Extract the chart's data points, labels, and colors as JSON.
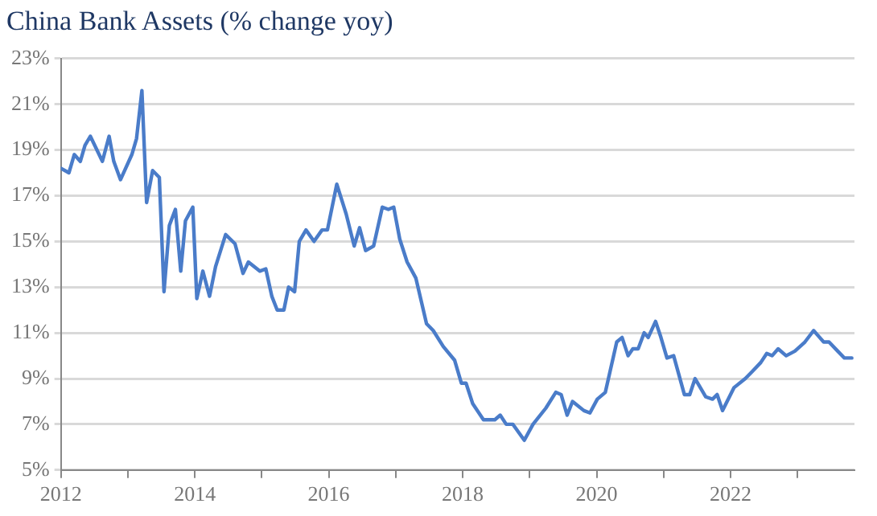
{
  "chart_data": {
    "type": "line",
    "title": "China Bank Assets (% change yoy)",
    "x": [
      2012.0,
      2012.12,
      2012.2,
      2012.29,
      2012.36,
      2012.44,
      2012.62,
      2012.72,
      2012.79,
      2012.89,
      2013.06,
      2013.13,
      2013.21,
      2013.28,
      2013.37,
      2013.47,
      2013.54,
      2013.62,
      2013.71,
      2013.79,
      2013.86,
      2013.97,
      2014.03,
      2014.12,
      2014.22,
      2014.31,
      2014.46,
      2014.6,
      2014.72,
      2014.8,
      2014.97,
      2015.06,
      2015.15,
      2015.23,
      2015.33,
      2015.4,
      2015.49,
      2015.56,
      2015.66,
      2015.78,
      2015.9,
      2015.98,
      2016.12,
      2016.26,
      2016.38,
      2016.46,
      2016.55,
      2016.67,
      2016.8,
      2016.89,
      2016.97,
      2017.06,
      2017.17,
      2017.3,
      2017.46,
      2017.56,
      2017.71,
      2017.88,
      2017.98,
      2018.05,
      2018.15,
      2018.31,
      2018.48,
      2018.56,
      2018.65,
      2018.75,
      2018.92,
      2019.05,
      2019.24,
      2019.39,
      2019.47,
      2019.56,
      2019.64,
      2019.81,
      2019.9,
      2020.01,
      2020.13,
      2020.3,
      2020.38,
      2020.47,
      2020.54,
      2020.62,
      2020.71,
      2020.77,
      2020.88,
      2020.96,
      2021.05,
      2021.15,
      2021.31,
      2021.39,
      2021.47,
      2021.63,
      2021.73,
      2021.8,
      2021.88,
      2022.05,
      2022.22,
      2022.32,
      2022.45,
      2022.54,
      2022.62,
      2022.71,
      2022.83,
      2022.96,
      2023.11,
      2023.24,
      2023.39,
      2023.47,
      2023.6,
      2023.7,
      2023.81
    ],
    "series": [
      {
        "color": "#4a7cc9",
        "values": [
          18.2,
          18.0,
          18.8,
          18.5,
          19.2,
          19.6,
          18.5,
          19.6,
          18.5,
          17.7,
          18.8,
          19.5,
          21.6,
          16.7,
          18.1,
          17.8,
          12.8,
          15.7,
          16.4,
          13.7,
          15.9,
          16.5,
          12.5,
          13.7,
          12.6,
          13.9,
          15.3,
          14.9,
          13.6,
          14.1,
          13.7,
          13.8,
          12.6,
          12.0,
          12.0,
          13.0,
          12.8,
          15.0,
          15.5,
          15.0,
          15.5,
          15.5,
          17.5,
          16.2,
          14.8,
          15.6,
          14.6,
          14.8,
          16.5,
          16.4,
          16.5,
          15.1,
          14.1,
          13.4,
          11.4,
          11.1,
          10.4,
          9.8,
          8.8,
          8.8,
          7.9,
          7.2,
          7.2,
          7.4,
          7.0,
          7.0,
          6.3,
          7.0,
          7.7,
          8.4,
          8.3,
          7.4,
          8.0,
          7.6,
          7.5,
          8.1,
          8.4,
          10.6,
          10.8,
          10.0,
          10.3,
          10.3,
          11.0,
          10.8,
          11.5,
          10.8,
          9.9,
          10.0,
          8.3,
          8.3,
          9.0,
          8.2,
          8.1,
          8.3,
          7.6,
          8.6,
          9.0,
          9.3,
          9.7,
          10.1,
          10.0,
          10.3,
          10.0,
          10.2,
          10.6,
          11.1,
          10.6,
          10.6,
          10.2,
          9.9,
          9.9
        ]
      }
    ],
    "xlim": [
      2012,
      2023.85
    ],
    "xticks": [
      {
        "value": 2012,
        "label": "2012"
      },
      {
        "value": 2013,
        "label": null
      },
      {
        "value": 2014,
        "label": "2014"
      },
      {
        "value": 2015,
        "label": null
      },
      {
        "value": 2016,
        "label": "2016"
      },
      {
        "value": 2017,
        "label": null
      },
      {
        "value": 2018,
        "label": "2018"
      },
      {
        "value": 2019,
        "label": null
      },
      {
        "value": 2020,
        "label": "2020"
      },
      {
        "value": 2021,
        "label": null
      },
      {
        "value": 2022,
        "label": "2022"
      },
      {
        "value": 2023,
        "label": null
      }
    ],
    "ylim": [
      5,
      23
    ],
    "yticks": [
      {
        "value": 5,
        "label": "5%"
      },
      {
        "value": 7,
        "label": "7%"
      },
      {
        "value": 9,
        "label": "9%"
      },
      {
        "value": 11,
        "label": "11%"
      },
      {
        "value": 13,
        "label": "13%"
      },
      {
        "value": 15,
        "label": "15%"
      },
      {
        "value": 17,
        "label": "17%"
      },
      {
        "value": 19,
        "label": "19%"
      },
      {
        "value": 21,
        "label": "21%"
      },
      {
        "value": 23,
        "label": "23%"
      }
    ],
    "grid": "y",
    "legend": false,
    "marker": "none",
    "line_style": "solid"
  }
}
